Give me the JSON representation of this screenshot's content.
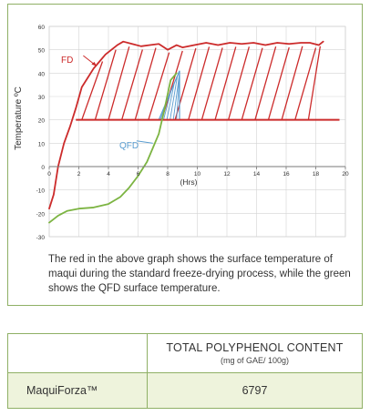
{
  "chart_data": {
    "type": "line",
    "xlabel": "(Hrs)",
    "ylabel": "Temperature ºC",
    "xlim": [
      0,
      20
    ],
    "ylim": [
      -30,
      60
    ],
    "x_ticks": [
      0,
      2,
      4,
      6,
      8,
      10,
      12,
      14,
      16,
      18,
      20
    ],
    "y_ticks": [
      -30,
      -20,
      -10,
      0,
      10,
      20,
      30,
      40,
      50,
      60
    ],
    "grid": true,
    "series": [
      {
        "name": "FD",
        "color": "#cc2b2b",
        "x": [
          0,
          0.3,
          0.6,
          1.0,
          1.4,
          1.8,
          2.2,
          2.6,
          3.0,
          3.4,
          3.8,
          4.2,
          4.6,
          5.0,
          5.6,
          6.2,
          6.8,
          7.4,
          8.0,
          8.6,
          9.0,
          9.8,
          10.6,
          11.4,
          12.2,
          13.0,
          13.8,
          14.6,
          15.4,
          16.2,
          17.0,
          17.6,
          18.2,
          18.5
        ],
        "y": [
          -18,
          -12,
          0,
          10,
          17,
          25,
          34,
          38,
          42,
          45,
          48,
          50,
          52,
          53.5,
          52.5,
          51.5,
          52,
          52.5,
          50,
          52,
          51,
          52,
          53,
          52,
          53,
          52.5,
          53,
          52,
          53,
          52.5,
          53,
          53,
          52,
          53.5
        ]
      },
      {
        "name": "QFD",
        "color": "#7cb442",
        "x": [
          0,
          0.6,
          1.2,
          2.0,
          3.0,
          4.0,
          4.8,
          5.4,
          6.0,
          6.6,
          7.0,
          7.4,
          7.8,
          8.2,
          8.6
        ],
        "y": [
          -24,
          -21,
          -19,
          -18,
          -17.5,
          -16,
          -13,
          -9,
          -4,
          2,
          8,
          14,
          25,
          37,
          40
        ]
      }
    ],
    "annotations": [
      "FD",
      "QFD"
    ]
  },
  "caption": "The red in the above graph shows the surface temperature of maqui during the standard freeze-drying process, while the green shows the  QFD surface temperature.",
  "table": {
    "header_main": "TOTAL POLYPHENOL CONTENT",
    "header_sub": "(mg of GAE/ 100g)",
    "product": "MaquiForza™",
    "value": "6797"
  }
}
